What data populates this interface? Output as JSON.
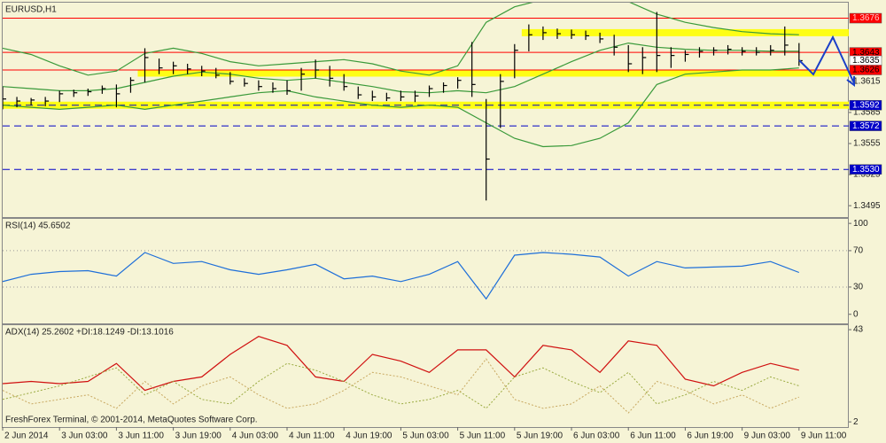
{
  "chart_data": [
    {
      "type": "ohlc",
      "title": "EURUSD,H1",
      "x": [
        0,
        2,
        4,
        6,
        8,
        10,
        12,
        14,
        16,
        18,
        20,
        22,
        24,
        26,
        28,
        30,
        32,
        34,
        36,
        38,
        40,
        42,
        44,
        46,
        48,
        50,
        52,
        54,
        56,
        58,
        60,
        62,
        64,
        66,
        68,
        70,
        72,
        74,
        76,
        78,
        80,
        82,
        84,
        86,
        88,
        90,
        92,
        94,
        96,
        98,
        100,
        102,
        104,
        106,
        108,
        110,
        112
      ],
      "high": [
        1.361,
        1.36,
        1.3599,
        1.36,
        1.3606,
        1.3607,
        1.3608,
        1.3611,
        1.3612,
        1.3619,
        1.3647,
        1.3637,
        1.3634,
        1.3632,
        1.363,
        1.3628,
        1.3624,
        1.3618,
        1.3616,
        1.3614,
        1.3616,
        1.3628,
        1.3636,
        1.363,
        1.3622,
        1.361,
        1.3606,
        1.3604,
        1.3606,
        1.3606,
        1.3611,
        1.3614,
        1.3619,
        1.3653,
        1.3598,
        1.3622,
        1.3651,
        1.367,
        1.3668,
        1.3666,
        1.3665,
        1.3664,
        1.3662,
        1.366,
        1.365,
        1.3648,
        1.3682,
        1.3648,
        1.3645,
        1.3648,
        1.3648,
        1.365,
        1.3648,
        1.3648,
        1.365,
        1.3668,
        1.3652
      ],
      "low": [
        1.3588,
        1.359,
        1.3592,
        1.3591,
        1.3595,
        1.36,
        1.3601,
        1.3603,
        1.359,
        1.3604,
        1.3614,
        1.3622,
        1.3622,
        1.3622,
        1.362,
        1.3618,
        1.3612,
        1.361,
        1.3606,
        1.3604,
        1.3602,
        1.3606,
        1.3618,
        1.361,
        1.3606,
        1.3598,
        1.3596,
        1.3596,
        1.3596,
        1.3595,
        1.36,
        1.3604,
        1.3608,
        1.36,
        1.35,
        1.357,
        1.3618,
        1.3644,
        1.3655,
        1.3656,
        1.3656,
        1.3655,
        1.3652,
        1.364,
        1.3624,
        1.3622,
        1.3624,
        1.3628,
        1.3634,
        1.3638,
        1.364,
        1.3641,
        1.364,
        1.364,
        1.364,
        1.364,
        1.363
      ],
      "close": [
        1.3598,
        1.3596,
        1.3597,
        1.3596,
        1.3603,
        1.3604,
        1.3605,
        1.3608,
        1.3603,
        1.3616,
        1.3638,
        1.3628,
        1.363,
        1.3627,
        1.3625,
        1.3621,
        1.3615,
        1.3613,
        1.361,
        1.3608,
        1.3606,
        1.3622,
        1.3626,
        1.3618,
        1.361,
        1.3602,
        1.36,
        1.3599,
        1.36,
        1.3601,
        1.3608,
        1.3611,
        1.3616,
        1.3612,
        1.354,
        1.3615,
        1.3645,
        1.366,
        1.3662,
        1.3661,
        1.366,
        1.3659,
        1.3656,
        1.3648,
        1.3632,
        1.3638,
        1.364,
        1.364,
        1.3641,
        1.3644,
        1.3645,
        1.3646,
        1.3644,
        1.3643,
        1.3645,
        1.365,
        1.3635
      ],
      "color": "#000000",
      "series": [
        {
          "color": "#3a9a3a",
          "x": [
            0,
            4,
            8,
            12,
            16,
            20,
            24,
            28,
            32,
            36,
            40,
            44,
            48,
            52,
            56,
            60,
            64,
            68,
            72,
            76,
            80,
            84,
            88,
            92,
            96,
            100,
            104,
            108,
            112
          ],
          "values": [
            1.3647,
            1.3641,
            1.363,
            1.3621,
            1.3625,
            1.3642,
            1.3647,
            1.3642,
            1.3634,
            1.363,
            1.3632,
            1.3634,
            1.3636,
            1.3632,
            1.3625,
            1.3621,
            1.363,
            1.3672,
            1.3687,
            1.3694,
            1.3698,
            1.3697,
            1.3692,
            1.368,
            1.3672,
            1.3667,
            1.3663,
            1.3661,
            1.366
          ]
        },
        {
          "color": "#3a9a3a",
          "x": [
            0,
            4,
            8,
            12,
            16,
            20,
            24,
            28,
            32,
            36,
            40,
            44,
            48,
            52,
            56,
            60,
            64,
            68,
            72,
            76,
            80,
            84,
            88,
            92,
            96,
            100,
            104,
            108,
            112
          ],
          "values": [
            1.361,
            1.3608,
            1.3606,
            1.3606,
            1.3608,
            1.3614,
            1.362,
            1.3624,
            1.3622,
            1.3618,
            1.3616,
            1.3618,
            1.3614,
            1.361,
            1.3605,
            1.3604,
            1.3606,
            1.3604,
            1.361,
            1.3622,
            1.3634,
            1.3645,
            1.3652,
            1.3648,
            1.3646,
            1.3645,
            1.3645,
            1.3644,
            1.3644
          ]
        },
        {
          "color": "#3a9a3a",
          "x": [
            0,
            4,
            8,
            12,
            16,
            20,
            24,
            28,
            32,
            36,
            40,
            44,
            48,
            52,
            56,
            60,
            64,
            68,
            72,
            76,
            80,
            84,
            88,
            92,
            96,
            100,
            104,
            108,
            112
          ],
          "values": [
            1.3592,
            1.359,
            1.3588,
            1.359,
            1.3592,
            1.3588,
            1.3592,
            1.3596,
            1.36,
            1.3604,
            1.3606,
            1.36,
            1.3596,
            1.3592,
            1.359,
            1.3592,
            1.359,
            1.3575,
            1.356,
            1.3552,
            1.3553,
            1.356,
            1.3575,
            1.3612,
            1.3622,
            1.3624,
            1.3626,
            1.3626,
            1.3628
          ]
        }
      ],
      "zones": [
        {
          "value": 1.3662,
          "from": 73
        },
        {
          "value": 1.3623,
          "from": 19
        },
        {
          "value": 1.3592,
          "from": 0
        }
      ],
      "zone_color": "#ffff00",
      "levels": [
        {
          "value": 1.3676,
          "color": "#ff0000",
          "ink": "#ffc8c8",
          "line": true,
          "dash": false
        },
        {
          "value": 1.3643,
          "color": "#ff0000",
          "ink": "#000000",
          "line": true,
          "dash": false
        },
        {
          "value": 1.3635,
          "color": "#ffffff",
          "ink": "#000000",
          "line": false,
          "dash": false
        },
        {
          "value": 1.3626,
          "color": "#ff0000",
          "ink": "#000000",
          "line": true,
          "dash": false
        },
        {
          "value": 1.3592,
          "color": "#0000c8",
          "ink": "#ffffff",
          "line": true,
          "dash": true
        },
        {
          "value": 1.3572,
          "color": "#0000c8",
          "ink": "#ffffff",
          "line": true,
          "dash": true
        },
        {
          "value": 1.353,
          "label": "1.3530",
          "color": "#0000c8",
          "ink": "#ffffff",
          "line": true,
          "dash": true
        }
      ],
      "ylim": [
        1.3484,
        1.3691
      ],
      "yticks": [
        1.3615,
        1.3585,
        1.3555,
        1.3525,
        1.3495
      ]
    },
    {
      "type": "line",
      "title": "RSI(14) 45.6502",
      "x": [
        0,
        4,
        8,
        12,
        16,
        20,
        24,
        28,
        32,
        36,
        40,
        44,
        48,
        52,
        56,
        60,
        64,
        68,
        72,
        76,
        80,
        84,
        88,
        92,
        96,
        100,
        104,
        108,
        112
      ],
      "series": [
        {
          "color": "#1e6fd9",
          "values": [
            36,
            44,
            47,
            48,
            42,
            68,
            56,
            58,
            49,
            44,
            49,
            55,
            39,
            42,
            36,
            44,
            58,
            17,
            65,
            68,
            66,
            63,
            42,
            58,
            51,
            52,
            53,
            58,
            46
          ]
        }
      ],
      "levels": [
        70,
        30
      ],
      "ylim": [
        -10,
        105
      ],
      "yticks": [
        100,
        70,
        30,
        0
      ]
    },
    {
      "type": "line",
      "title": "ADX(14) 25.2602 +DI:18.1249 -DI:13.1016",
      "x": [
        0,
        4,
        8,
        12,
        16,
        20,
        24,
        28,
        32,
        36,
        40,
        44,
        48,
        52,
        56,
        60,
        64,
        68,
        72,
        76,
        80,
        84,
        88,
        92,
        96,
        100,
        104,
        108,
        112
      ],
      "series": [
        {
          "color": "#d01010",
          "dash": false,
          "values": [
            19,
            20,
            19,
            20,
            28,
            16,
            20,
            22,
            32,
            40,
            36,
            22,
            20,
            32,
            29,
            24,
            34,
            34,
            22,
            36,
            34,
            24,
            38,
            36,
            21,
            18,
            24,
            28,
            25
          ]
        },
        {
          "color": "#9aaa40",
          "dash": true,
          "values": [
            12,
            15,
            18,
            22,
            26,
            14,
            20,
            12,
            10,
            20,
            28,
            25,
            20,
            14,
            10,
            12,
            16,
            8,
            22,
            26,
            20,
            15,
            24,
            10,
            14,
            20,
            16,
            22,
            18
          ]
        },
        {
          "color": "#c8a860",
          "dash": true,
          "values": [
            16,
            10,
            12,
            14,
            8,
            20,
            10,
            18,
            22,
            14,
            8,
            10,
            16,
            24,
            22,
            18,
            14,
            30,
            12,
            8,
            10,
            18,
            6,
            20,
            16,
            10,
            14,
            8,
            13
          ]
        }
      ],
      "ylim": [
        -0.3,
        45
      ],
      "yticks": [
        43,
        2
      ],
      "xlim": [
        0,
        119
      ],
      "xticks": [
        {
          "value": 0,
          "label": "2 Jun 2014"
        },
        {
          "value": 8,
          "label": "3 Jun 03:00"
        },
        {
          "value": 16,
          "label": "3 Jun 11:00"
        },
        {
          "value": 24,
          "label": "3 Jun 19:00"
        },
        {
          "value": 32,
          "label": "4 Jun 03:00"
        },
        {
          "value": 40,
          "label": "4 Jun 11:00"
        },
        {
          "value": 48,
          "label": "4 Jun 19:00"
        },
        {
          "value": 56,
          "label": "5 Jun 03:00"
        },
        {
          "value": 64,
          "label": "5 Jun 11:00"
        },
        {
          "value": 72,
          "label": "5 Jun 19:00"
        },
        {
          "value": 80,
          "label": "6 Jun 03:00"
        },
        {
          "value": 88,
          "label": "6 Jun 11:00"
        },
        {
          "value": 96,
          "label": "6 Jun 19:00"
        },
        {
          "value": 104,
          "label": "9 Jun 03:00"
        },
        {
          "value": 112,
          "label": "9 Jun 11:00"
        }
      ]
    }
  ],
  "footer": "FreshForex Terminal, © 2001-2014, MetaQuotes Software Corp."
}
